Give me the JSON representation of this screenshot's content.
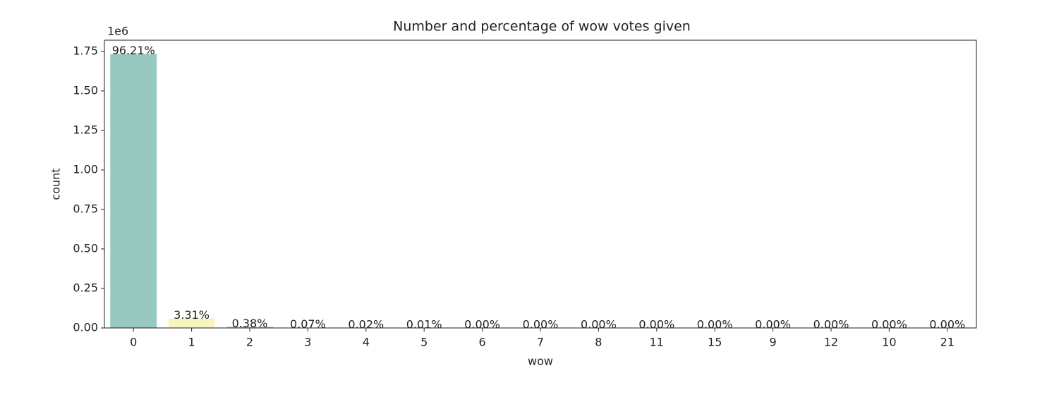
{
  "chart_data": {
    "type": "bar",
    "title": "Number and percentage of wow votes given",
    "x_label": "wow",
    "y_label": "count",
    "y_offset_label": "1e6",
    "categories": [
      "0",
      "1",
      "2",
      "3",
      "4",
      "5",
      "6",
      "7",
      "8",
      "11",
      "15",
      "9",
      "12",
      "10",
      "21"
    ],
    "values": [
      1734000,
      59660,
      6850,
      1262,
      360,
      180,
      50,
      20,
      10,
      5,
      3,
      2,
      1,
      1,
      1
    ],
    "annotations": [
      "96.21%",
      "3.31%",
      "0.38%",
      "0.07%",
      "0.02%",
      "0.01%",
      "0.00%",
      "0.00%",
      "0.00%",
      "0.00%",
      "0.00%",
      "0.00%",
      "0.00%",
      "0.00%",
      "0.00%"
    ],
    "colors": [
      "#98c9c1",
      "#f5f5bc",
      "#bcbad3",
      "#e58f85",
      "#8eb1cc",
      "#ecb77c",
      "#b3d27d",
      "#f0d1de",
      "#d5d5d5",
      "#b58fb6",
      "#cde6c9",
      "#f2e487",
      "#98c9c1",
      "#f5f5bc",
      "#bcbad3"
    ],
    "ylim": [
      0,
      1821000
    ],
    "yticks": [
      {
        "value": 0,
        "label": "0.00"
      },
      {
        "value": 250000,
        "label": "0.25"
      },
      {
        "value": 500000,
        "label": "0.50"
      },
      {
        "value": 750000,
        "label": "0.75"
      },
      {
        "value": 1000000,
        "label": "1.00"
      },
      {
        "value": 1250000,
        "label": "1.25"
      },
      {
        "value": 1500000,
        "label": "1.50"
      },
      {
        "value": 1750000,
        "label": "1.75"
      }
    ],
    "grid": false
  }
}
